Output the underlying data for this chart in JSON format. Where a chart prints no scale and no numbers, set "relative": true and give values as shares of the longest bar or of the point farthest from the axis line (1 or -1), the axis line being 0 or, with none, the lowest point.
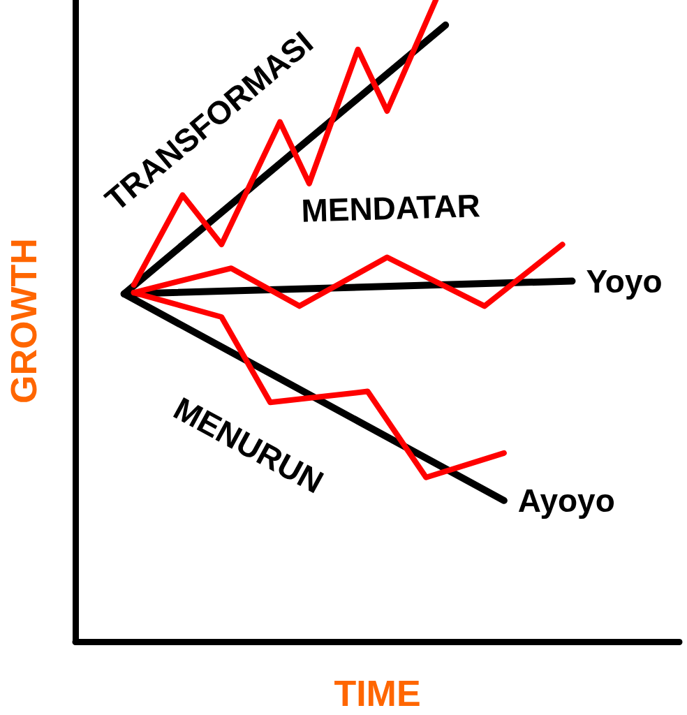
{
  "chart_data": {
    "type": "line",
    "relative": true,
    "xlabel": "TIME",
    "ylabel": "GROWTH",
    "legend": false,
    "grid": false,
    "categories": [
      null,
      null,
      null,
      null,
      null,
      null,
      null,
      null,
      null,
      null,
      null,
      null,
      null,
      null,
      null,
      null,
      null,
      null,
      null,
      null,
      null,
      null,
      null,
      null,
      null,
      null,
      null,
      null,
      null,
      null,
      null,
      null,
      null,
      null,
      null,
      null,
      null,
      null,
      null,
      null,
      null,
      null,
      null,
      null,
      null,
      null,
      null,
      null,
      null,
      null,
      null,
      null,
      null,
      null,
      null,
      null,
      null,
      null,
      null,
      null,
      null,
      null,
      null
    ],
    "series": [
      {
        "color": "#000000",
        "values": [
          null,
          null,
          null,
          null,
          null,
          0.542,
          null,
          null,
          null,
          null,
          null,
          null,
          null,
          null,
          null,
          null,
          null,
          null,
          null,
          null,
          null,
          null,
          null,
          null,
          null,
          null,
          null,
          null,
          null,
          null,
          null,
          null,
          null,
          null,
          null,
          null,
          null,
          null,
          0.961,
          null,
          null,
          null,
          null,
          null,
          null,
          null,
          null,
          null,
          null,
          null,
          null,
          null,
          null,
          null,
          null,
          null,
          null,
          null,
          null,
          null,
          null,
          null,
          null
        ]
      },
      {
        "name": "Yoyo",
        "color": "#000000",
        "values": [
          null,
          null,
          null,
          null,
          null,
          0.542,
          null,
          null,
          null,
          null,
          null,
          null,
          null,
          null,
          null,
          null,
          null,
          null,
          null,
          null,
          null,
          null,
          null,
          null,
          null,
          null,
          null,
          null,
          null,
          null,
          null,
          null,
          null,
          null,
          null,
          null,
          null,
          null,
          null,
          null,
          null,
          null,
          null,
          null,
          null,
          null,
          null,
          null,
          null,
          null,
          null,
          0.562,
          null,
          null,
          null,
          null,
          null,
          null,
          null,
          null,
          null,
          null,
          null
        ]
      },
      {
        "name": "Ayoyo",
        "color": "#000000",
        "values": [
          null,
          null,
          null,
          null,
          null,
          0.542,
          null,
          null,
          null,
          null,
          null,
          null,
          null,
          null,
          null,
          null,
          null,
          null,
          null,
          null,
          null,
          null,
          null,
          null,
          null,
          null,
          null,
          null,
          null,
          null,
          null,
          null,
          null,
          null,
          null,
          null,
          null,
          null,
          null,
          null,
          null,
          null,
          null,
          null,
          0.22,
          null,
          null,
          null,
          null,
          null,
          null,
          null,
          null,
          null,
          null,
          null,
          null,
          null,
          null,
          null,
          null,
          null,
          null
        ]
      },
      {
        "color": "#ff0000",
        "values": [
          null,
          null,
          null,
          null,
          null,
          null,
          0.556,
          null,
          null,
          null,
          null,
          0.696,
          null,
          null,
          null,
          0.619,
          null,
          null,
          null,
          null,
          null,
          0.81,
          null,
          null,
          0.714,
          null,
          null,
          null,
          null,
          0.923,
          null,
          null,
          0.827,
          null,
          null,
          null,
          null,
          1,
          null,
          null,
          null,
          null,
          null,
          null,
          null,
          null,
          null,
          null,
          null,
          null,
          null,
          null,
          null,
          null,
          null,
          null,
          null,
          null,
          null,
          null,
          null,
          null,
          null
        ]
      },
      {
        "color": "#ff0000",
        "values": [
          null,
          null,
          null,
          null,
          null,
          null,
          0.544,
          null,
          null,
          null,
          null,
          null,
          null,
          null,
          null,
          null,
          0.582,
          null,
          null,
          null,
          null,
          null,
          null,
          0.523,
          null,
          null,
          null,
          null,
          null,
          null,
          null,
          null,
          0.599,
          null,
          null,
          null,
          null,
          null,
          null,
          null,
          null,
          null,
          0.523,
          null,
          null,
          null,
          null,
          null,
          null,
          null,
          0.619,
          null,
          null,
          null,
          null,
          null,
          null,
          null,
          null,
          null,
          null,
          null,
          null
        ]
      },
      {
        "color": "#ff0000",
        "values": [
          null,
          null,
          null,
          null,
          null,
          null,
          0.544,
          null,
          null,
          null,
          null,
          null,
          null,
          null,
          null,
          0.506,
          null,
          null,
          null,
          null,
          0.373,
          null,
          null,
          null,
          null,
          null,
          null,
          null,
          null,
          null,
          0.39,
          null,
          null,
          null,
          null,
          null,
          0.256,
          null,
          null,
          null,
          null,
          null,
          null,
          null,
          0.294,
          null,
          null,
          null,
          null,
          null,
          null,
          null,
          null,
          null,
          null,
          null,
          null,
          null,
          null,
          null,
          null,
          null,
          null
        ]
      }
    ],
    "annotations": [
      "TRANSFORMASI",
      "MENDATAR",
      "MENURUN"
    ]
  }
}
